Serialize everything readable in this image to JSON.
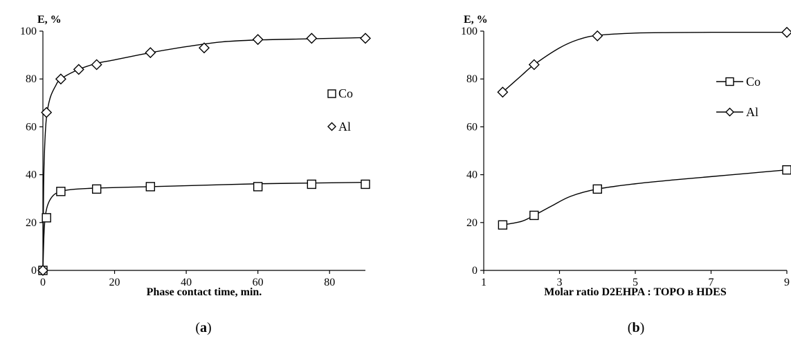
{
  "chart_data": [
    {
      "type": "line",
      "panel_caption": {
        "open": "(",
        "letter": "a",
        "close": ")"
      },
      "ylabel": "E, %",
      "xlabel": "Phase contact time, min.",
      "xlim": [
        0,
        90
      ],
      "ylim": [
        0,
        100
      ],
      "x_ticks": [
        "0",
        "20",
        "40",
        "60",
        "80"
      ],
      "y_ticks": [
        "0",
        "20",
        "40",
        "60",
        "80",
        "100"
      ],
      "legend_position": "right",
      "series": [
        {
          "name": "Co",
          "marker": "square",
          "points": [
            [
              0,
              0
            ],
            [
              1,
              22
            ],
            [
              5,
              33
            ],
            [
              15,
              34
            ],
            [
              30,
              35
            ],
            [
              60,
              35
            ],
            [
              75,
              36
            ],
            [
              90,
              36
            ]
          ],
          "curve": [
            [
              0,
              0
            ],
            [
              0.3,
              15
            ],
            [
              0.7,
              23
            ],
            [
              1.5,
              28
            ],
            [
              3,
              31.5
            ],
            [
              5,
              33
            ],
            [
              8,
              33.8
            ],
            [
              15,
              34.4
            ],
            [
              30,
              35
            ],
            [
              45,
              35.6
            ],
            [
              60,
              36.2
            ],
            [
              75,
              36.5
            ],
            [
              90,
              36.8
            ]
          ]
        },
        {
          "name": "Al",
          "marker": "diamond",
          "points": [
            [
              0,
              0
            ],
            [
              1,
              66
            ],
            [
              5,
              80
            ],
            [
              10,
              84
            ],
            [
              15,
              86
            ],
            [
              30,
              91
            ],
            [
              45,
              93
            ],
            [
              60,
              96.5
            ],
            [
              75,
              97
            ],
            [
              90,
              97
            ]
          ],
          "curve": [
            [
              0,
              0
            ],
            [
              0.2,
              35
            ],
            [
              0.5,
              52
            ],
            [
              1,
              64
            ],
            [
              2,
              72
            ],
            [
              3.5,
              77
            ],
            [
              5,
              80
            ],
            [
              10,
              84
            ],
            [
              15,
              86.5
            ],
            [
              20,
              88
            ],
            [
              30,
              91
            ],
            [
              40,
              93.5
            ],
            [
              50,
              95.5
            ],
            [
              60,
              96.3
            ],
            [
              75,
              96.8
            ],
            [
              90,
              97.3
            ]
          ]
        }
      ]
    },
    {
      "type": "line",
      "panel_caption": {
        "open": "(",
        "letter": "b",
        "close": ")"
      },
      "ylabel": "E, %",
      "xlabel": "Molar ratio D2EHPA : TOPO в HDES",
      "xlim": [
        1,
        9
      ],
      "ylim": [
        0,
        100
      ],
      "x_ticks": [
        "1",
        "3",
        "5",
        "7",
        "9"
      ],
      "y_ticks": [
        "0",
        "20",
        "40",
        "60",
        "80",
        "100"
      ],
      "legend_position": "right",
      "series": [
        {
          "name": "Co",
          "marker": "square",
          "points": [
            [
              1.5,
              19
            ],
            [
              2.33,
              23
            ],
            [
              4,
              34
            ],
            [
              9,
              42
            ]
          ],
          "curve": [
            [
              1.5,
              19
            ],
            [
              2,
              20.5
            ],
            [
              2.33,
              23
            ],
            [
              2.8,
              27
            ],
            [
              3.3,
              31
            ],
            [
              4,
              34
            ],
            [
              5,
              36.2
            ],
            [
              6,
              37.8
            ],
            [
              7,
              39.2
            ],
            [
              8,
              40.6
            ],
            [
              9,
              42
            ]
          ]
        },
        {
          "name": "Al",
          "marker": "diamond",
          "points": [
            [
              1.5,
              74.5
            ],
            [
              2.33,
              86
            ],
            [
              4,
              98
            ],
            [
              9,
              99.5
            ]
          ],
          "curve": [
            [
              1.5,
              74.5
            ],
            [
              2,
              81.5
            ],
            [
              2.33,
              86
            ],
            [
              3,
              93
            ],
            [
              3.5,
              96.5
            ],
            [
              4,
              98.2
            ],
            [
              5,
              99.2
            ],
            [
              6,
              99.4
            ],
            [
              7,
              99.5
            ],
            [
              8,
              99.5
            ],
            [
              9,
              99.5
            ]
          ]
        }
      ]
    }
  ]
}
